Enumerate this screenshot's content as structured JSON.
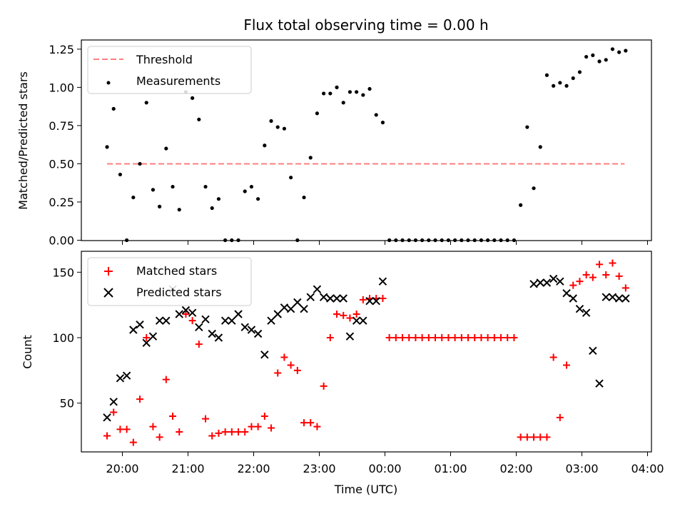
{
  "chart_data": [
    {
      "type": "scatter",
      "title": "Flux total observing time = 0.00 h",
      "ylabel": "Matched/Predicted stars",
      "xlabel": "",
      "ylim": [
        0,
        1.31
      ],
      "yticks": [
        "0.00",
        "0.25",
        "0.50",
        "0.75",
        "1.00",
        "1.25"
      ],
      "legend": {
        "placement": "top-left"
      },
      "colors": {
        "threshold": "#ff7f7f",
        "measurements": "#000000"
      },
      "series": [
        {
          "name": "Threshold",
          "style": "dashed-line",
          "x": [
            "19:46",
            "23:59",
            "03:39"
          ],
          "y": [
            0.5,
            0.5,
            0.5
          ]
        },
        {
          "name": "Measurements",
          "style": "dot",
          "x": [
            "19:46",
            "19:52",
            "19:58",
            "20:04",
            "20:10",
            "20:16",
            "20:22",
            "20:28",
            "20:34",
            "20:40",
            "20:46",
            "20:52",
            "20:58",
            "21:04",
            "21:10",
            "21:16",
            "21:22",
            "21:28",
            "21:34",
            "21:40",
            "21:46",
            "21:52",
            "21:58",
            "22:04",
            "22:10",
            "22:16",
            "22:22",
            "22:28",
            "22:34",
            "22:40",
            "22:46",
            "22:52",
            "22:58",
            "23:04",
            "23:10",
            "23:16",
            "23:22",
            "23:28",
            "23:34",
            "23:40",
            "23:46",
            "23:52",
            "23:58",
            "00:04",
            "00:10",
            "00:16",
            "00:22",
            "00:28",
            "00:34",
            "00:40",
            "00:46",
            "00:52",
            "00:58",
            "01:04",
            "01:10",
            "01:16",
            "01:22",
            "01:28",
            "01:34",
            "01:40",
            "01:46",
            "01:52",
            "01:58",
            "02:04",
            "02:10",
            "02:16",
            "02:22",
            "02:28",
            "02:34",
            "02:40",
            "02:46",
            "02:52",
            "02:58",
            "03:04",
            "03:10",
            "03:16",
            "03:22",
            "03:28",
            "03:34",
            "03:40"
          ],
          "y": [
            0.61,
            0.86,
            0.43,
            0.0,
            0.28,
            0.5,
            0.9,
            0.33,
            0.22,
            0.6,
            0.35,
            0.2,
            0.97,
            0.93,
            0.79,
            0.35,
            0.21,
            0.27,
            0.0,
            0.0,
            0.0,
            0.32,
            0.35,
            0.27,
            0.62,
            0.78,
            0.74,
            0.73,
            0.41,
            0.0,
            0.28,
            0.54,
            0.83,
            0.96,
            0.96,
            1.0,
            0.9,
            0.97,
            0.97,
            0.95,
            0.99,
            0.82,
            0.77,
            0.0,
            0.0,
            0.0,
            0.0,
            0.0,
            0.0,
            0.0,
            0.0,
            0.0,
            0.0,
            0.0,
            0.0,
            0.0,
            0.0,
            0.0,
            0.0,
            0.0,
            0.0,
            0.0,
            0.0,
            0.23,
            0.74,
            0.34,
            0.61,
            1.08,
            1.01,
            1.03,
            1.01,
            1.06,
            1.1,
            1.2,
            1.21,
            1.17,
            1.18,
            1.25,
            1.23,
            1.24
          ]
        }
      ]
    },
    {
      "type": "scatter",
      "title": "",
      "ylabel": "Count",
      "xlabel": "Time (UTC)",
      "ylim": [
        13,
        166
      ],
      "yticks": [
        "50",
        "100",
        "150"
      ],
      "xticks": [
        "20:00",
        "21:00",
        "22:00",
        "23:00",
        "00:00",
        "01:00",
        "02:00",
        "03:00",
        "04:00"
      ],
      "legend": {
        "placement": "top-left"
      },
      "colors": {
        "matched": "#ff0000",
        "predicted": "#000000"
      },
      "series": [
        {
          "name": "Matched stars",
          "style": "plus",
          "x": [
            "19:46",
            "19:52",
            "19:58",
            "20:04",
            "20:10",
            "20:16",
            "20:22",
            "20:28",
            "20:34",
            "20:40",
            "20:46",
            "20:52",
            "20:58",
            "21:04",
            "21:10",
            "21:16",
            "21:22",
            "21:28",
            "21:34",
            "21:40",
            "21:46",
            "21:52",
            "21:58",
            "22:04",
            "22:10",
            "22:16",
            "22:22",
            "22:28",
            "22:34",
            "22:40",
            "22:46",
            "22:52",
            "22:58",
            "23:04",
            "23:10",
            "23:16",
            "23:22",
            "23:28",
            "23:34",
            "23:40",
            "23:46",
            "23:52",
            "23:58",
            "00:04",
            "00:10",
            "00:16",
            "00:22",
            "00:28",
            "00:34",
            "00:40",
            "00:46",
            "00:52",
            "00:58",
            "01:04",
            "01:10",
            "01:16",
            "01:22",
            "01:28",
            "01:34",
            "01:40",
            "01:46",
            "01:52",
            "01:58",
            "02:04",
            "02:10",
            "02:16",
            "02:22",
            "02:28",
            "02:34",
            "02:40",
            "02:46",
            "02:52",
            "02:58",
            "03:04",
            "03:10",
            "03:16",
            "03:22",
            "03:28",
            "03:34",
            "03:40"
          ],
          "y": [
            25,
            43,
            30,
            30,
            20,
            53,
            100,
            32,
            24,
            68,
            40,
            28,
            118,
            113,
            95,
            38,
            25,
            27,
            28,
            28,
            28,
            28,
            32,
            32,
            40,
            31,
            73,
            85,
            79,
            75,
            35,
            35,
            32,
            63,
            100,
            118,
            117,
            115,
            118,
            129,
            130,
            130,
            130,
            100,
            100,
            100,
            100,
            100,
            100,
            100,
            100,
            100,
            100,
            100,
            100,
            100,
            100,
            100,
            100,
            100,
            100,
            100,
            100,
            24,
            24,
            24,
            24,
            24,
            85,
            39,
            79,
            140,
            143,
            148,
            146,
            156,
            148,
            157,
            147,
            138
          ]
        },
        {
          "name": "Predicted stars",
          "style": "x",
          "x": [
            "19:46",
            "19:52",
            "19:58",
            "20:04",
            "20:10",
            "20:16",
            "20:22",
            "20:28",
            "20:34",
            "20:40",
            "20:46",
            "20:52",
            "20:58",
            "21:04",
            "21:10",
            "21:16",
            "21:22",
            "21:28",
            "21:34",
            "21:40",
            "21:46",
            "21:52",
            "21:58",
            "22:04",
            "22:10",
            "22:16",
            "22:22",
            "22:28",
            "22:34",
            "22:40",
            "22:46",
            "22:52",
            "22:58",
            "23:04",
            "23:10",
            "23:16",
            "23:22",
            "23:28",
            "23:34",
            "23:40",
            "23:46",
            "23:52",
            "23:58",
            "02:16",
            "02:22",
            "02:28",
            "02:34",
            "02:40",
            "02:46",
            "02:52",
            "02:58",
            "03:04",
            "03:10",
            "03:16",
            "03:22",
            "03:28",
            "03:34",
            "03:40"
          ],
          "y": [
            39,
            51,
            69,
            71,
            106,
            110,
            96,
            101,
            113,
            113,
            137,
            118,
            121,
            119,
            108,
            114,
            103,
            100,
            113,
            113,
            118,
            108,
            106,
            103,
            87,
            113,
            118,
            123,
            122,
            127,
            122,
            131,
            137,
            131,
            130,
            130,
            130,
            101,
            113,
            113,
            128,
            128,
            143,
            141,
            142,
            142,
            145,
            143,
            134,
            130,
            122,
            119,
            90,
            65,
            131,
            131,
            130,
            130
          ]
        }
      ]
    }
  ]
}
